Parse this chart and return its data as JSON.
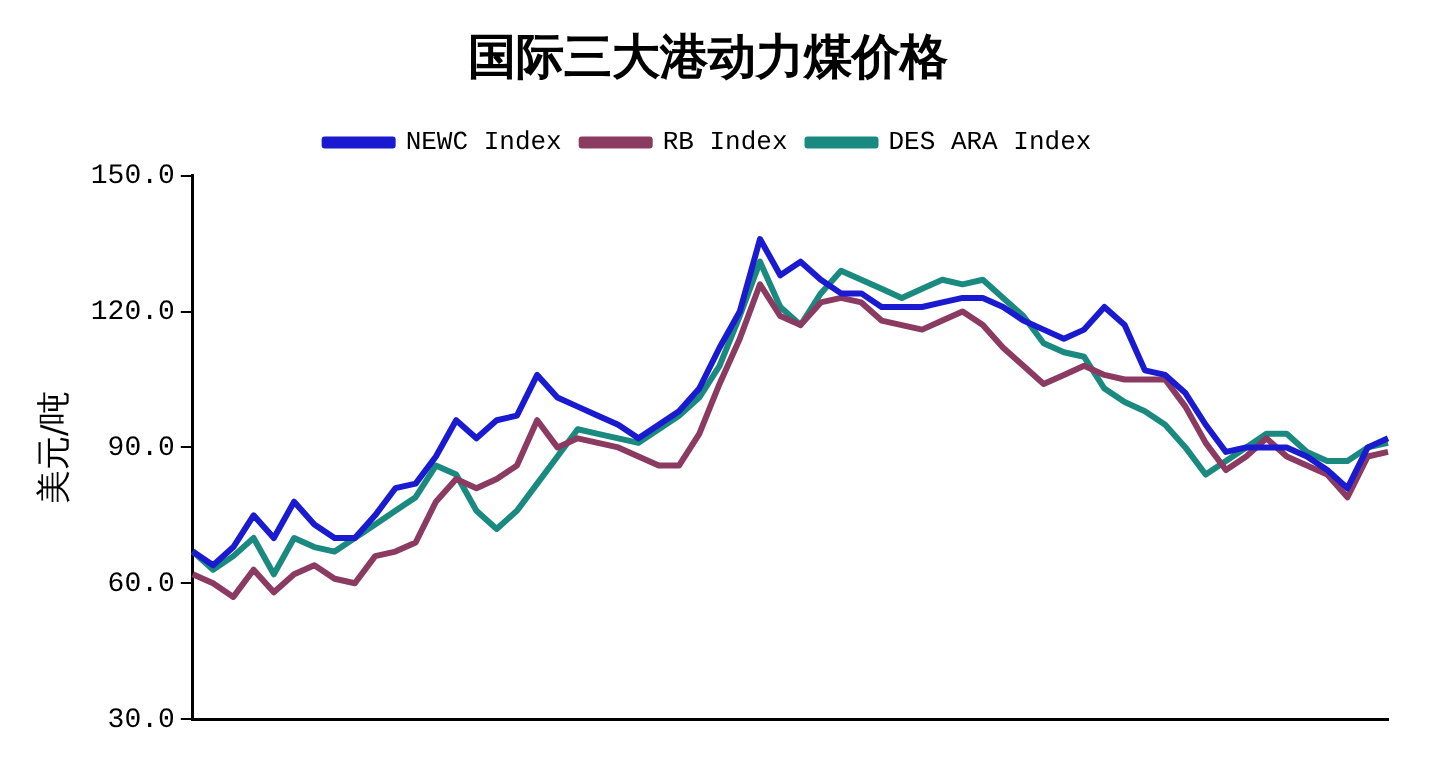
{
  "chart_data": {
    "type": "line",
    "title": "国际三大港动力煤价格",
    "ylabel": "美元/吨",
    "categories": [
      null,
      null,
      null,
      null,
      null,
      null,
      null,
      null,
      null,
      null,
      null,
      null,
      null,
      null,
      null,
      null,
      null,
      null,
      null,
      null,
      null,
      null,
      null,
      null,
      null,
      null,
      null,
      null,
      null,
      null,
      null,
      null,
      null,
      null,
      null,
      null,
      null,
      null,
      null,
      null,
      null,
      null,
      null,
      null,
      null,
      null,
      null,
      null,
      null,
      null,
      null,
      null,
      null,
      null,
      null,
      null,
      null,
      null,
      null,
      null
    ],
    "series": [
      {
        "name": "NEWC Index",
        "color": "#1a1ad0",
        "values": [
          67,
          64,
          68,
          75,
          70,
          78,
          73,
          70,
          70,
          75,
          81,
          82,
          88,
          96,
          92,
          96,
          97,
          106,
          101,
          99,
          97,
          95,
          92,
          95,
          98,
          103,
          112,
          120,
          136,
          128,
          131,
          127,
          124,
          124,
          121,
          121,
          121,
          122,
          123,
          123,
          121,
          118,
          116,
          114,
          116,
          121,
          117,
          107,
          106,
          102,
          95,
          89,
          90,
          90,
          90,
          88,
          85,
          81,
          90,
          92
        ]
      },
      {
        "name": "RB Index",
        "color": "#8b3a62",
        "values": [
          62,
          60,
          57,
          63,
          58,
          62,
          64,
          61,
          60,
          66,
          67,
          69,
          78,
          83,
          81,
          83,
          86,
          96,
          90,
          92,
          91,
          90,
          88,
          86,
          86,
          93,
          104,
          114,
          126,
          119,
          117,
          122,
          123,
          122,
          118,
          117,
          116,
          118,
          120,
          117,
          112,
          108,
          104,
          106,
          108,
          106,
          105,
          105,
          105,
          99,
          91,
          85,
          88,
          92,
          88,
          86,
          84,
          79,
          88,
          89
        ]
      },
      {
        "name": "DES ARA Index",
        "color": "#1a8a80",
        "values": [
          67,
          63,
          66,
          70,
          62,
          70,
          68,
          67,
          70,
          73,
          76,
          79,
          86,
          84,
          76,
          72,
          76,
          82,
          88,
          94,
          93,
          92,
          91,
          94,
          97,
          101,
          108,
          119,
          131,
          121,
          117,
          124,
          129,
          127,
          125,
          123,
          125,
          127,
          126,
          127,
          123,
          119,
          113,
          111,
          110,
          103,
          100,
          98,
          95,
          90,
          84,
          87,
          90,
          93,
          93,
          89,
          87,
          87,
          90,
          91
        ]
      }
    ],
    "ylim": [
      30,
      150
    ],
    "yticks": [
      {
        "value": 30,
        "label": "30.0"
      },
      {
        "value": 60,
        "label": "60.0"
      },
      {
        "value": 90,
        "label": "90.0"
      },
      {
        "value": 120,
        "label": "120.0"
      },
      {
        "value": 150,
        "label": "150.0"
      }
    ],
    "grid": false,
    "legend": "top",
    "marker": "none",
    "line_style": "solid"
  }
}
